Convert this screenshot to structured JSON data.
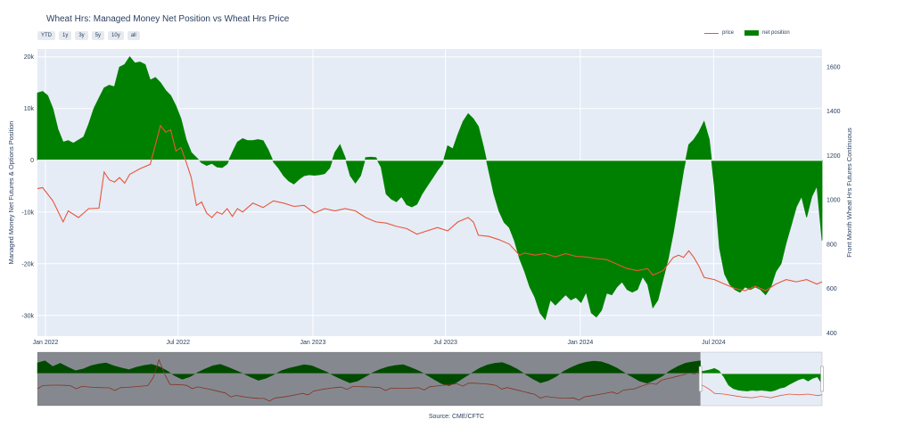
{
  "title": "Wheat Hrs: Managed Money Net Position vs Wheat Hrs Price",
  "range_buttons": [
    "YTD",
    "1y",
    "3y",
    "5y",
    "10y",
    "all"
  ],
  "source": "Source: CME/CFTC",
  "colors": {
    "price": "#e8563b",
    "net_position": "#008000",
    "plot_bg": "#e5ecf6",
    "grid": "#ffffff"
  },
  "chart_data": {
    "type": "area",
    "title": "Wheat Hrs: Managed Money Net Position vs Wheat Hrs Price",
    "xlabel": "",
    "ylabel": "Managed Money Net Futures & Options Position",
    "y2label": "Front Month Wheat Hrs Futures Continuous",
    "x_ticks": [
      "Jan 2022",
      "Jul 2022",
      "Jan 2023",
      "Jul 2023",
      "Jan 2024",
      "Jul 2024"
    ],
    "y_ticks": [
      "20k",
      "10k",
      "0",
      "-10k",
      "-20k",
      "-30k"
    ],
    "y_tick_values": [
      20000,
      10000,
      0,
      -10000,
      -20000,
      -30000
    ],
    "y2_ticks": [
      "1600",
      "1400",
      "1200",
      "1000",
      "800",
      "600",
      "400"
    ],
    "y2_tick_values": [
      1600,
      1400,
      1200,
      1000,
      800,
      600,
      400
    ],
    "xlim": [
      "2021-12-21",
      "2024-11-26"
    ],
    "ylim": [
      -34000,
      21500
    ],
    "y2lim": [
      385,
      1680
    ],
    "legend_position": "top-right",
    "grid": true,
    "series": [
      {
        "name": "price",
        "axis": "y2",
        "style": "line",
        "points": [
          [
            "2021-12-21",
            1050
          ],
          [
            "2021-12-28",
            1055
          ],
          [
            "2022-01-11",
            995
          ],
          [
            "2022-01-25",
            900
          ],
          [
            "2022-02-01",
            950
          ],
          [
            "2022-02-15",
            920
          ],
          [
            "2022-03-01",
            960
          ],
          [
            "2022-03-15",
            962
          ],
          [
            "2022-03-22",
            1125
          ],
          [
            "2022-03-29",
            1090
          ],
          [
            "2022-04-05",
            1080
          ],
          [
            "2022-04-12",
            1100
          ],
          [
            "2022-04-19",
            1075
          ],
          [
            "2022-04-26",
            1115
          ],
          [
            "2022-05-10",
            1140
          ],
          [
            "2022-05-24",
            1160
          ],
          [
            "2022-06-07",
            1335
          ],
          [
            "2022-06-14",
            1305
          ],
          [
            "2022-06-21",
            1315
          ],
          [
            "2022-06-28",
            1220
          ],
          [
            "2022-07-05",
            1235
          ],
          [
            "2022-07-12",
            1170
          ],
          [
            "2022-07-19",
            1100
          ],
          [
            "2022-07-26",
            975
          ],
          [
            "2022-08-02",
            990
          ],
          [
            "2022-08-09",
            940
          ],
          [
            "2022-08-16",
            920
          ],
          [
            "2022-08-23",
            945
          ],
          [
            "2022-08-30",
            935
          ],
          [
            "2022-09-06",
            960
          ],
          [
            "2022-09-13",
            925
          ],
          [
            "2022-09-20",
            960
          ],
          [
            "2022-09-27",
            945
          ],
          [
            "2022-10-11",
            985
          ],
          [
            "2022-10-25",
            965
          ],
          [
            "2022-11-08",
            995
          ],
          [
            "2022-11-22",
            985
          ],
          [
            "2022-12-06",
            970
          ],
          [
            "2022-12-20",
            975
          ],
          [
            "2023-01-03",
            940
          ],
          [
            "2023-01-17",
            960
          ],
          [
            "2023-01-31",
            950
          ],
          [
            "2023-02-14",
            960
          ],
          [
            "2023-02-28",
            950
          ],
          [
            "2023-03-14",
            920
          ],
          [
            "2023-03-28",
            900
          ],
          [
            "2023-04-11",
            895
          ],
          [
            "2023-04-25",
            880
          ],
          [
            "2023-05-09",
            870
          ],
          [
            "2023-05-23",
            845
          ],
          [
            "2023-06-06",
            860
          ],
          [
            "2023-06-20",
            875
          ],
          [
            "2023-07-04",
            860
          ],
          [
            "2023-07-18",
            900
          ],
          [
            "2023-08-01",
            920
          ],
          [
            "2023-08-08",
            900
          ],
          [
            "2023-08-15",
            840
          ],
          [
            "2023-08-29",
            835
          ],
          [
            "2023-09-12",
            820
          ],
          [
            "2023-09-26",
            800
          ],
          [
            "2023-10-10",
            750
          ],
          [
            "2023-10-17",
            760
          ],
          [
            "2023-10-31",
            750
          ],
          [
            "2023-11-14",
            758
          ],
          [
            "2023-11-28",
            742
          ],
          [
            "2023-12-12",
            757
          ],
          [
            "2023-12-26",
            745
          ],
          [
            "2024-01-09",
            742
          ],
          [
            "2024-01-23",
            735
          ],
          [
            "2024-02-06",
            730
          ],
          [
            "2024-02-20",
            710
          ],
          [
            "2024-03-05",
            690
          ],
          [
            "2024-03-19",
            680
          ],
          [
            "2024-04-02",
            690
          ],
          [
            "2024-04-09",
            660
          ],
          [
            "2024-04-23",
            680
          ],
          [
            "2024-05-07",
            740
          ],
          [
            "2024-05-14",
            750
          ],
          [
            "2024-05-21",
            740
          ],
          [
            "2024-05-28",
            770
          ],
          [
            "2024-06-04",
            740
          ],
          [
            "2024-06-11",
            700
          ],
          [
            "2024-06-18",
            650
          ],
          [
            "2024-07-02",
            640
          ],
          [
            "2024-07-16",
            620
          ],
          [
            "2024-07-30",
            600
          ],
          [
            "2024-08-13",
            590
          ],
          [
            "2024-08-27",
            610
          ],
          [
            "2024-09-10",
            590
          ],
          [
            "2024-09-24",
            620
          ],
          [
            "2024-10-08",
            640
          ],
          [
            "2024-10-22",
            630
          ],
          [
            "2024-11-05",
            640
          ],
          [
            "2024-11-19",
            620
          ],
          [
            "2024-11-26",
            630
          ]
        ]
      },
      {
        "name": "net position",
        "axis": "y",
        "style": "area",
        "points": [
          [
            "2021-12-21",
            13000
          ],
          [
            "2021-12-28",
            13300
          ],
          [
            "2022-01-04",
            12500
          ],
          [
            "2022-01-11",
            10000
          ],
          [
            "2022-01-18",
            6000
          ],
          [
            "2022-01-25",
            3500
          ],
          [
            "2022-02-01",
            3800
          ],
          [
            "2022-02-08",
            3300
          ],
          [
            "2022-02-15",
            3900
          ],
          [
            "2022-02-22",
            4500
          ],
          [
            "2022-03-01",
            7000
          ],
          [
            "2022-03-08",
            10000
          ],
          [
            "2022-03-15",
            12000
          ],
          [
            "2022-03-22",
            14000
          ],
          [
            "2022-03-29",
            14500
          ],
          [
            "2022-04-05",
            14200
          ],
          [
            "2022-04-12",
            18000
          ],
          [
            "2022-04-19",
            18500
          ],
          [
            "2022-04-26",
            20000
          ],
          [
            "2022-05-03",
            18800
          ],
          [
            "2022-05-10",
            19000
          ],
          [
            "2022-05-17",
            18500
          ],
          [
            "2022-05-24",
            15500
          ],
          [
            "2022-05-31",
            16000
          ],
          [
            "2022-06-07",
            15000
          ],
          [
            "2022-06-14",
            13500
          ],
          [
            "2022-06-21",
            12500
          ],
          [
            "2022-06-28",
            10500
          ],
          [
            "2022-07-05",
            8000
          ],
          [
            "2022-07-12",
            4000
          ],
          [
            "2022-07-19",
            1500
          ],
          [
            "2022-07-26",
            500
          ],
          [
            "2022-08-02",
            -500
          ],
          [
            "2022-08-09",
            -1000
          ],
          [
            "2022-08-16",
            -600
          ],
          [
            "2022-08-23",
            -1300
          ],
          [
            "2022-08-30",
            -1400
          ],
          [
            "2022-09-06",
            -700
          ],
          [
            "2022-09-13",
            1500
          ],
          [
            "2022-09-20",
            3500
          ],
          [
            "2022-09-27",
            4200
          ],
          [
            "2022-10-04",
            3800
          ],
          [
            "2022-10-11",
            3800
          ],
          [
            "2022-10-18",
            4000
          ],
          [
            "2022-10-25",
            3800
          ],
          [
            "2022-11-01",
            2000
          ],
          [
            "2022-11-08",
            -300
          ],
          [
            "2022-11-15",
            -1500
          ],
          [
            "2022-11-22",
            -3000
          ],
          [
            "2022-11-29",
            -4000
          ],
          [
            "2022-12-06",
            -4600
          ],
          [
            "2022-12-13",
            -3700
          ],
          [
            "2022-12-20",
            -3000
          ],
          [
            "2022-12-27",
            -2800
          ],
          [
            "2023-01-03",
            -2900
          ],
          [
            "2023-01-10",
            -2800
          ],
          [
            "2023-01-17",
            -2600
          ],
          [
            "2023-01-24",
            -1500
          ],
          [
            "2023-01-31",
            1500
          ],
          [
            "2023-02-07",
            3000
          ],
          [
            "2023-02-14",
            500
          ],
          [
            "2023-02-21",
            -3000
          ],
          [
            "2023-02-28",
            -4400
          ],
          [
            "2023-03-07",
            -3000
          ],
          [
            "2023-03-14",
            500
          ],
          [
            "2023-03-21",
            600
          ],
          [
            "2023-03-28",
            500
          ],
          [
            "2023-04-04",
            -1300
          ],
          [
            "2023-04-11",
            -6500
          ],
          [
            "2023-04-18",
            -7500
          ],
          [
            "2023-04-25",
            -8000
          ],
          [
            "2023-05-02",
            -7000
          ],
          [
            "2023-05-09",
            -8600
          ],
          [
            "2023-05-16",
            -9000
          ],
          [
            "2023-05-23",
            -8500
          ],
          [
            "2023-05-30",
            -6500
          ],
          [
            "2023-06-06",
            -5000
          ],
          [
            "2023-06-13",
            -3500
          ],
          [
            "2023-06-20",
            -2000
          ],
          [
            "2023-06-27",
            -700
          ],
          [
            "2023-07-04",
            2800
          ],
          [
            "2023-07-11",
            2200
          ],
          [
            "2023-07-18",
            5000
          ],
          [
            "2023-07-25",
            7500
          ],
          [
            "2023-08-01",
            9000
          ],
          [
            "2023-08-08",
            8000
          ],
          [
            "2023-08-15",
            6500
          ],
          [
            "2023-08-22",
            2500
          ],
          [
            "2023-08-29",
            -2000
          ],
          [
            "2023-09-05",
            -6500
          ],
          [
            "2023-09-12",
            -9800
          ],
          [
            "2023-09-19",
            -12000
          ],
          [
            "2023-09-26",
            -13000
          ],
          [
            "2023-10-03",
            -15500
          ],
          [
            "2023-10-10",
            -19000
          ],
          [
            "2023-10-17",
            -21500
          ],
          [
            "2023-10-24",
            -24500
          ],
          [
            "2023-10-31",
            -26500
          ],
          [
            "2023-11-07",
            -29500
          ],
          [
            "2023-11-14",
            -30800
          ],
          [
            "2023-11-21",
            -27000
          ],
          [
            "2023-11-28",
            -28000
          ],
          [
            "2023-12-05",
            -27000
          ],
          [
            "2023-12-12",
            -26000
          ],
          [
            "2023-12-19",
            -27000
          ],
          [
            "2023-12-26",
            -26500
          ],
          [
            "2024-01-02",
            -27500
          ],
          [
            "2024-01-09",
            -25500
          ],
          [
            "2024-01-16",
            -29500
          ],
          [
            "2024-01-23",
            -30300
          ],
          [
            "2024-01-30",
            -29000
          ],
          [
            "2024-02-06",
            -25700
          ],
          [
            "2024-02-13",
            -26000
          ],
          [
            "2024-02-20",
            -24500
          ],
          [
            "2024-02-27",
            -23500
          ],
          [
            "2024-03-05",
            -25000
          ],
          [
            "2024-03-12",
            -25500
          ],
          [
            "2024-03-19",
            -25000
          ],
          [
            "2024-03-26",
            -22500
          ],
          [
            "2024-04-02",
            -24000
          ],
          [
            "2024-04-09",
            -28500
          ],
          [
            "2024-04-16",
            -27000
          ],
          [
            "2024-04-23",
            -23000
          ],
          [
            "2024-04-30",
            -19000
          ],
          [
            "2024-05-07",
            -14000
          ],
          [
            "2024-05-14",
            -8000
          ],
          [
            "2024-05-21",
            -2000
          ],
          [
            "2024-05-28",
            3000
          ],
          [
            "2024-06-04",
            4000
          ],
          [
            "2024-06-11",
            5500
          ],
          [
            "2024-06-18",
            7500
          ],
          [
            "2024-06-25",
            4000
          ],
          [
            "2024-07-02",
            -5000
          ],
          [
            "2024-07-09",
            -17000
          ],
          [
            "2024-07-16",
            -22000
          ],
          [
            "2024-07-23",
            -24000
          ],
          [
            "2024-07-30",
            -25000
          ],
          [
            "2024-08-06",
            -25500
          ],
          [
            "2024-08-13",
            -24500
          ],
          [
            "2024-08-20",
            -25000
          ],
          [
            "2024-08-27",
            -24500
          ],
          [
            "2024-09-03",
            -25000
          ],
          [
            "2024-09-10",
            -26000
          ],
          [
            "2024-09-17",
            -24500
          ],
          [
            "2024-09-24",
            -21500
          ],
          [
            "2024-10-01",
            -20000
          ],
          [
            "2024-10-08",
            -16000
          ],
          [
            "2024-10-15",
            -12500
          ],
          [
            "2024-10-22",
            -9000
          ],
          [
            "2024-10-29",
            -7000
          ],
          [
            "2024-11-05",
            -11000
          ],
          [
            "2024-11-12",
            -7000
          ],
          [
            "2024-11-19",
            -5000
          ],
          [
            "2024-11-26",
            -15500
          ]
        ]
      }
    ],
    "navigator": {
      "shaded_until": "2024-05-28",
      "net_position_history": [
        3000,
        3600,
        2000,
        2900,
        1800,
        800,
        1300,
        2200,
        2700,
        3000,
        2200,
        1600,
        1100,
        1800,
        2300,
        2600,
        1900,
        800,
        -600,
        -1600,
        -900,
        300,
        1300,
        2200,
        2600,
        1800,
        900,
        0,
        -1000,
        -1900,
        -1300,
        -300,
        800,
        1500,
        2000,
        2500,
        2200,
        1300,
        400,
        -700,
        -1700,
        -2600,
        -2100,
        -900,
        300,
        1200,
        1900,
        2300,
        2500,
        1700,
        800,
        -300,
        -1600,
        -2800,
        -3400,
        -2500,
        -1100,
        200,
        1500,
        2400,
        2900,
        3100,
        2300,
        1200,
        -200,
        -1500,
        -2600,
        -2000,
        -900,
        600,
        1700,
        2600,
        3200,
        3500,
        3300,
        2600,
        1600,
        300,
        -900,
        -2100,
        -2700,
        -1800,
        -700,
        800,
        2000,
        2900,
        3300,
        3600
      ]
    }
  }
}
